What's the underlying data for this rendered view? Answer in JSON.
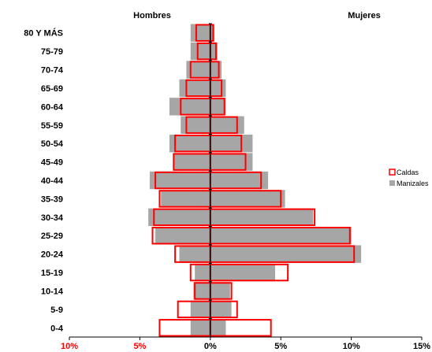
{
  "chart_data": {
    "type": "bar",
    "orientation": "horizontal",
    "subtype": "population-pyramid",
    "header_left": "Hombres",
    "header_right": "Mujeres",
    "categories": [
      "0-4",
      "5-9",
      "10-14",
      "15-19",
      "20-24",
      "25-29",
      "30-34",
      "35-39",
      "40-44",
      "45-49",
      "50-54",
      "55-59",
      "60-64",
      "65-69",
      "70-74",
      "75-79",
      "80 Y MÁS"
    ],
    "xlim": [
      -10,
      15
    ],
    "x_ticks": [
      {
        "value": -10,
        "label": "10%",
        "color": "#ff0000"
      },
      {
        "value": -5,
        "label": "5%",
        "color": "#ff0000"
      },
      {
        "value": 0,
        "label": "0%",
        "color": "#000000"
      },
      {
        "value": 5,
        "label": "5%",
        "color": "#000000"
      },
      {
        "value": 10,
        "label": "10%",
        "color": "#000000"
      },
      {
        "value": 15,
        "label": "15%",
        "color": "#000000"
      }
    ],
    "series": [
      {
        "name": "Manizales",
        "style": "filled",
        "color": "#a6a6a6",
        "hombres": [
          -1.4,
          -1.4,
          -1.2,
          -1.1,
          -2.2,
          -3.9,
          -4.4,
          -3.5,
          -4.3,
          -2.6,
          -2.9,
          -2.1,
          -2.9,
          -2.2,
          -1.7,
          -1.4,
          -1.4
        ],
        "mujeres": [
          1.1,
          1.5,
          1.4,
          4.6,
          10.7,
          10.0,
          7.3,
          5.3,
          4.1,
          3.0,
          3.0,
          2.4,
          1.1,
          1.1,
          0.8,
          0.5,
          0.3
        ]
      },
      {
        "name": "Caldas",
        "style": "outline",
        "color": "#ff0000",
        "hombres": [
          -3.6,
          -2.3,
          -1.1,
          -1.4,
          -2.5,
          -4.1,
          -4.0,
          -3.6,
          -3.9,
          -2.6,
          -2.5,
          -1.7,
          -2.1,
          -1.7,
          -1.4,
          -0.9,
          -1.0
        ],
        "mujeres": [
          4.3,
          1.9,
          1.5,
          5.5,
          10.2,
          9.9,
          7.4,
          5.0,
          3.6,
          2.5,
          2.2,
          1.9,
          1.0,
          0.8,
          0.6,
          0.4,
          0.2
        ]
      }
    ],
    "legend_position": "right",
    "grid": false
  }
}
